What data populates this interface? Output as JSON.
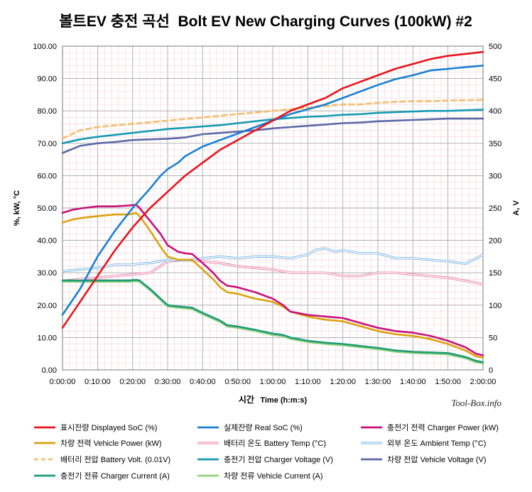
{
  "chart_data": {
    "type": "line",
    "title": "볼트EV 충전 곡선  Bolt EV New Charging Curves (100kW) #2",
    "xlabel_ko": "시간",
    "xlabel_en": "Time (h:m:s)",
    "ylabel_left": "%, kW, °C",
    "ylabel_right": "A, V",
    "watermark": "Tool-Box.info",
    "x_unit": "minutes",
    "xlim": [
      0,
      120
    ],
    "ylim_left": [
      0,
      100
    ],
    "ylim_right": [
      0,
      500
    ],
    "x_ticks": [
      {
        "value": 0,
        "label": "0:00:00"
      },
      {
        "value": 10,
        "label": "0:10:00"
      },
      {
        "value": 20,
        "label": "0:20:00"
      },
      {
        "value": 30,
        "label": "0:30:00"
      },
      {
        "value": 40,
        "label": "0:40:00"
      },
      {
        "value": 50,
        "label": "0:50:00"
      },
      {
        "value": 60,
        "label": "1:00:00"
      },
      {
        "value": 70,
        "label": "1:10:00"
      },
      {
        "value": 80,
        "label": "1:20:00"
      },
      {
        "value": 90,
        "label": "1:30:00"
      },
      {
        "value": 100,
        "label": "1:40:00"
      },
      {
        "value": 110,
        "label": "1:50:00"
      },
      {
        "value": 120,
        "label": "2:00:00"
      }
    ],
    "y_left_ticks": [
      "0.00",
      "10.00",
      "20.00",
      "30.00",
      "40.00",
      "50.00",
      "60.00",
      "70.00",
      "80.00",
      "90.00",
      "100.00"
    ],
    "y_right_ticks": [
      "0",
      "50",
      "100",
      "150",
      "200",
      "250",
      "300",
      "350",
      "400",
      "450",
      "500"
    ],
    "grid": true,
    "legend_position": "bottom",
    "series": [
      {
        "name": "표시잔량 Displayed SoC (%)",
        "axis": "left",
        "color": "#e8141c",
        "style": "solid",
        "x": [
          0,
          5,
          10,
          15,
          20,
          25,
          28,
          30,
          33,
          35,
          40,
          45,
          50,
          55,
          60,
          65,
          70,
          75,
          80,
          85,
          90,
          95,
          100,
          105,
          110,
          115,
          120
        ],
        "y": [
          13,
          21,
          29,
          37,
          44,
          50,
          53,
          55,
          58,
          60,
          64,
          68,
          71,
          74,
          77,
          80,
          82,
          84,
          87,
          89,
          91,
          93,
          94.5,
          96,
          97,
          97.6,
          98.2
        ]
      },
      {
        "name": "실제잔량 Real SoC (%)",
        "axis": "left",
        "color": "#1a7fd4",
        "style": "solid",
        "x": [
          0,
          5,
          10,
          15,
          20,
          25,
          28,
          30,
          33,
          35,
          40,
          45,
          50,
          55,
          60,
          65,
          70,
          75,
          80,
          85,
          90,
          95,
          100,
          105,
          110,
          115,
          120
        ],
        "y": [
          17,
          25,
          35,
          43,
          50,
          56,
          60,
          62,
          64,
          66,
          69,
          71,
          73,
          75,
          77,
          79,
          80.5,
          82,
          84,
          86,
          88,
          89.8,
          91,
          92.5,
          93,
          93.5,
          94
        ]
      },
      {
        "name": "충전기 전력 Charger Power (kW)",
        "axis": "left",
        "color": "#c8127a",
        "style": "solid",
        "x": [
          0,
          3,
          6,
          10,
          15,
          19,
          21,
          22,
          25,
          28,
          30,
          33,
          35,
          37,
          40,
          43,
          45,
          47,
          50,
          55,
          60,
          63,
          65,
          70,
          75,
          80,
          85,
          90,
          95,
          100,
          105,
          110,
          115,
          118,
          120
        ],
        "y": [
          48.5,
          49.5,
          50,
          50.5,
          50.5,
          50.8,
          51,
          50,
          46,
          42,
          38.5,
          36.5,
          36,
          35.8,
          33,
          30,
          27.5,
          26,
          25.5,
          24,
          22,
          20,
          18,
          17,
          16.5,
          16,
          14.5,
          13,
          12,
          11.5,
          10.5,
          9,
          7,
          5,
          4.5
        ]
      },
      {
        "name": "차량 전력 Vehicle Power (kW)",
        "axis": "left",
        "color": "#dca20e",
        "style": "solid",
        "x": [
          0,
          3,
          6,
          10,
          15,
          19,
          21,
          22,
          25,
          28,
          30,
          33,
          35,
          37,
          40,
          43,
          45,
          47,
          50,
          55,
          60,
          63,
          65,
          70,
          75,
          80,
          85,
          90,
          95,
          100,
          105,
          110,
          115,
          118,
          120
        ],
        "y": [
          45.5,
          46.5,
          47,
          47.5,
          48,
          48,
          48.5,
          47.5,
          43,
          38,
          35,
          34,
          34,
          34,
          31,
          28,
          25.5,
          24,
          23.5,
          22,
          21,
          19.5,
          18,
          16.5,
          15.5,
          15,
          13.5,
          12,
          11,
          10.5,
          9.5,
          8,
          6,
          4.2,
          3.8
        ]
      },
      {
        "name": "배터리 온도 Battery Temp (°C)",
        "axis": "left",
        "color": "#e87fa8",
        "style": "double",
        "x": [
          0,
          5,
          10,
          15,
          20,
          25,
          30,
          35,
          40,
          45,
          50,
          55,
          60,
          65,
          70,
          75,
          80,
          85,
          90,
          95,
          100,
          105,
          110,
          115,
          120
        ],
        "y": [
          27.5,
          28,
          28.5,
          29,
          29.5,
          30,
          33.5,
          34,
          33.5,
          33,
          32,
          31.5,
          31,
          30,
          30,
          30,
          29,
          29,
          30,
          30,
          29.5,
          29,
          28.5,
          27.5,
          26.5
        ]
      },
      {
        "name": "외부 온도 Ambient Temp (°C)",
        "axis": "left",
        "color": "#7cb8e6",
        "style": "double",
        "x": [
          0,
          5,
          10,
          15,
          18,
          20,
          22,
          25,
          30,
          35,
          40,
          45,
          50,
          55,
          60,
          65,
          70,
          72,
          75,
          78,
          80,
          85,
          90,
          95,
          100,
          105,
          110,
          115,
          120
        ],
        "y": [
          30.5,
          31,
          31.5,
          32.5,
          32.5,
          32.5,
          32.8,
          33,
          34,
          33.8,
          34.5,
          35,
          34.5,
          35,
          35,
          34.5,
          35.5,
          37,
          37.5,
          36.5,
          37,
          36,
          36,
          34.5,
          34.5,
          34,
          33.5,
          32.8,
          35.5
        ]
      },
      {
        "name": "배터리 전압 Battery Volt. (0.01V)",
        "axis": "left",
        "color": "#f5bf74",
        "style": "dashed",
        "x": [
          0,
          5,
          10,
          15,
          20,
          25,
          30,
          35,
          40,
          45,
          50,
          55,
          60,
          65,
          70,
          75,
          80,
          85,
          90,
          95,
          100,
          105,
          110,
          115,
          120
        ],
        "y": [
          71.5,
          74,
          75,
          75.5,
          76,
          76.5,
          77,
          77.5,
          78,
          78.5,
          79,
          79.5,
          80,
          80.5,
          81,
          81.5,
          82,
          82,
          82.5,
          82.8,
          83,
          83,
          83.2,
          83.3,
          83.4
        ]
      },
      {
        "name": "충전기 전압 Charger Voltage (V)",
        "axis": "right",
        "color": "#169ab3",
        "style": "solid",
        "x": [
          0,
          5,
          10,
          15,
          20,
          25,
          30,
          35,
          40,
          45,
          50,
          55,
          60,
          65,
          70,
          75,
          80,
          85,
          90,
          95,
          100,
          105,
          110,
          115,
          120
        ],
        "y": [
          350,
          356,
          360,
          363,
          366,
          369,
          372,
          374,
          376,
          378,
          381,
          384,
          387,
          389,
          391,
          392,
          394,
          395,
          397,
          398,
          399,
          400,
          400,
          401,
          402
        ]
      },
      {
        "name": "차량 전압 Vehicle Voltage (V)",
        "axis": "right",
        "color": "#5c67a8",
        "style": "solid",
        "x": [
          0,
          5,
          10,
          15,
          20,
          25,
          30,
          35,
          40,
          45,
          50,
          55,
          60,
          65,
          70,
          75,
          80,
          85,
          90,
          95,
          100,
          105,
          110,
          115,
          120
        ],
        "y": [
          335,
          346,
          350,
          352,
          355,
          356,
          357,
          359,
          364,
          366,
          368,
          370,
          373,
          375,
          377,
          379,
          381,
          382,
          384,
          385,
          386,
          387,
          388,
          388,
          388
        ]
      },
      {
        "name": "충전기 전류 Charger Current (A)",
        "axis": "right",
        "color": "#1f9a78",
        "style": "solid",
        "x": [
          0,
          5,
          10,
          15,
          19,
          21,
          22,
          25,
          28,
          30,
          33,
          35,
          37,
          40,
          45,
          47,
          50,
          55,
          60,
          63,
          65,
          70,
          75,
          80,
          85,
          90,
          95,
          100,
          105,
          110,
          115,
          118,
          120
        ],
        "y": [
          138,
          138,
          138,
          138,
          138,
          139,
          138,
          125,
          110,
          100,
          98,
          97,
          96,
          88,
          76,
          69,
          67,
          62,
          56,
          54,
          50,
          45,
          42,
          40,
          37,
          34,
          30,
          28,
          27,
          26,
          20,
          14,
          12
        ]
      },
      {
        "name": "차량 전류 Vehicle Current (A)",
        "axis": "right",
        "color": "#92d47a",
        "style": "solid",
        "x": [
          0,
          5,
          10,
          15,
          19,
          21,
          22,
          25,
          28,
          30,
          33,
          35,
          37,
          40,
          45,
          47,
          50,
          55,
          60,
          63,
          65,
          70,
          75,
          80,
          85,
          90,
          95,
          100,
          105,
          110,
          115,
          118,
          120
        ],
        "y": [
          136,
          136,
          136,
          136,
          136,
          137,
          136,
          123,
          108,
          98,
          96,
          95,
          94,
          86,
          74,
          67,
          65,
          60,
          54,
          52,
          48,
          43,
          40,
          38,
          35,
          32,
          28,
          26,
          25,
          24,
          18,
          12,
          10
        ]
      }
    ]
  }
}
